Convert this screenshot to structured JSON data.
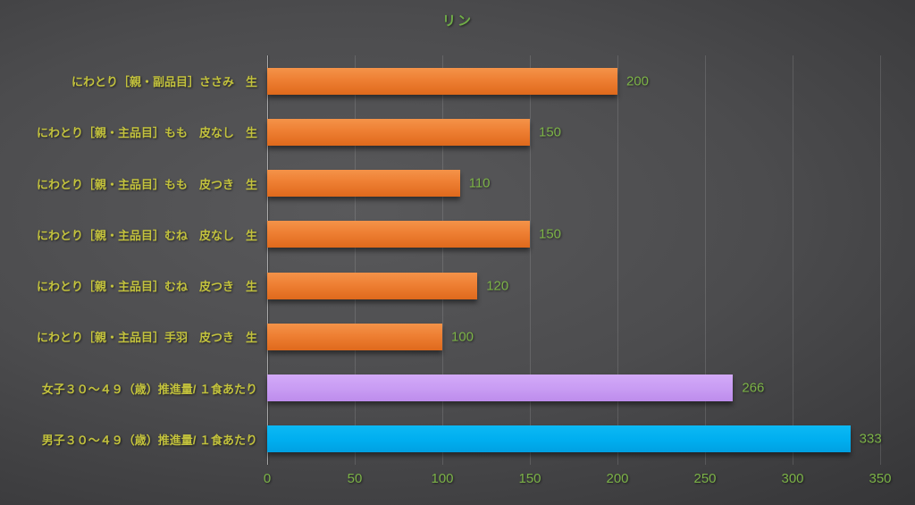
{
  "chart_data": {
    "type": "bar",
    "orientation": "horizontal",
    "title": "リン",
    "categories": [
      "にわとり［親・副品目］ささみ　生",
      "にわとり［親・主品目］もも　皮なし　生",
      "にわとり［親・主品目］もも　皮つき　生",
      "にわとり［親・主品目］むね　皮なし　生",
      "にわとり［親・主品目］むね　皮つき　生",
      "にわとり［親・主品目］手羽　皮つき　生",
      "女子３０～４９（歳）推進量/ １食あたり",
      "男子３０～４９（歳）推進量/ １食あたり"
    ],
    "values": [
      200,
      150,
      110,
      150,
      120,
      100,
      266,
      333
    ],
    "bar_series": [
      "item",
      "item",
      "item",
      "item",
      "item",
      "item",
      "female",
      "male"
    ],
    "value_labels": [
      "200",
      "150",
      "110",
      "150",
      "120",
      "100",
      "266",
      "333"
    ],
    "xlim": [
      0,
      350
    ],
    "xticks": [
      0,
      50,
      100,
      150,
      200,
      250,
      300,
      350
    ],
    "xtick_labels": [
      "0",
      "50",
      "100",
      "150",
      "200",
      "250",
      "300",
      "350"
    ],
    "grid": true,
    "legend": false,
    "colors": {
      "item_bar": "#ED7D31",
      "female_bar": "#C89BF3",
      "male_bar": "#00AEEF",
      "title_text": "#70AD47",
      "category_text": "#C3C23D",
      "value_text": "#7CB347",
      "tick_text": "#7CB347",
      "background_center": "#59595B",
      "background_edge": "#262628",
      "gridline": "#4C4C4E",
      "axis_line": "#9A9A9A"
    }
  }
}
